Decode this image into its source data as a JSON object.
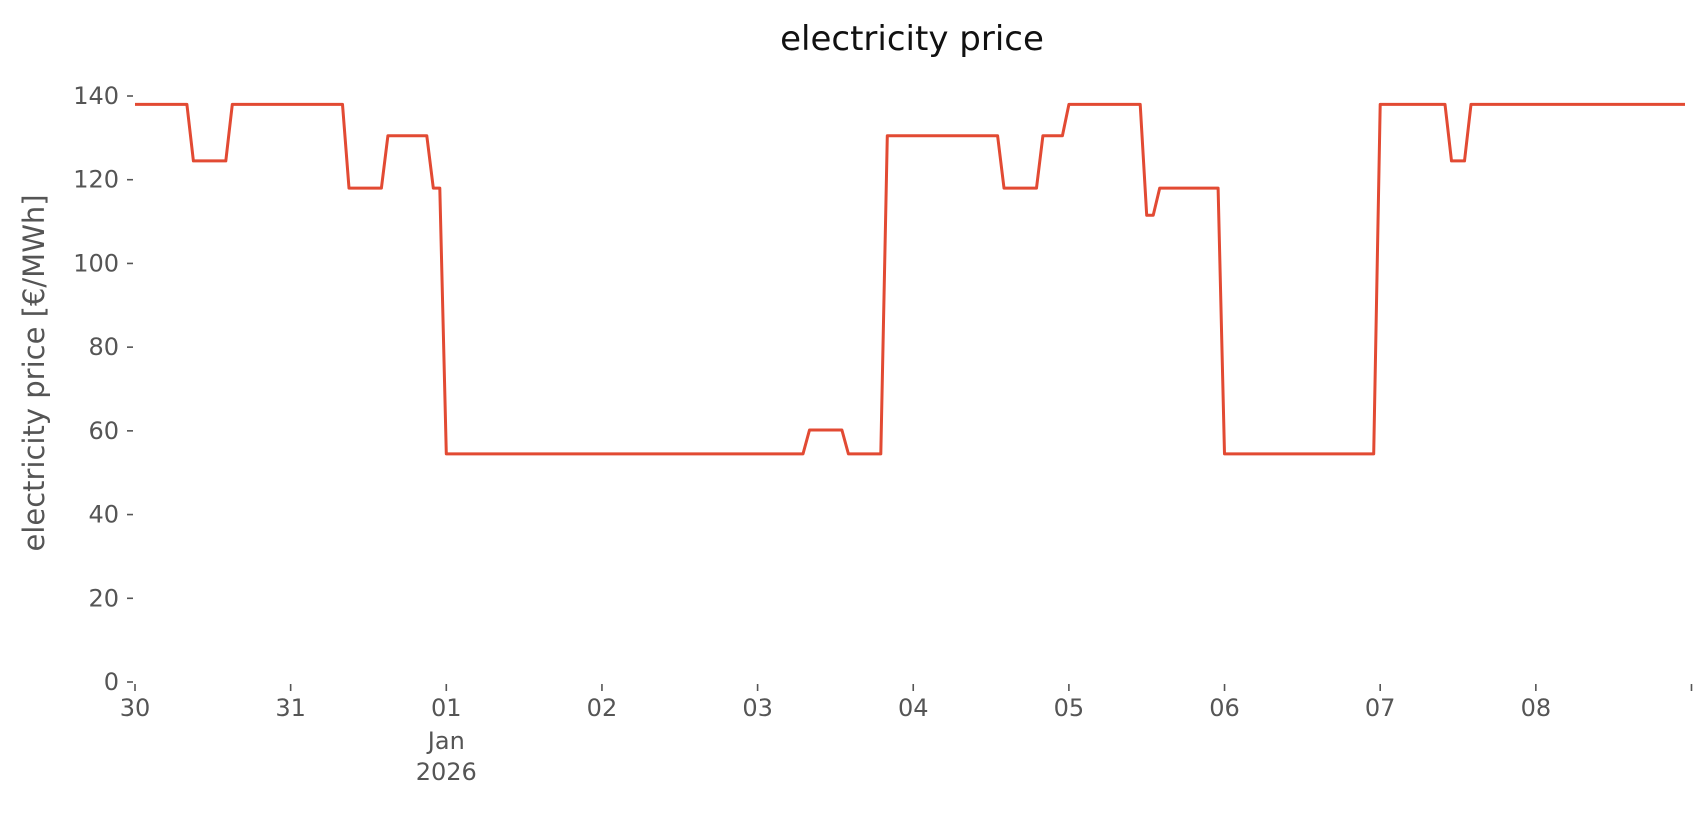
{
  "chart_data": {
    "type": "line",
    "title": "electricity price",
    "xlabel": "",
    "ylabel": "electricity price [€/MWh]",
    "ylim": [
      0,
      140
    ],
    "xlim": [
      "2025-12-30T00:00",
      "2026-01-08T23:00"
    ],
    "grid": false,
    "y_ticks": [
      0,
      20,
      40,
      60,
      80,
      100,
      120,
      140
    ],
    "x_ticks": [
      {
        "date": "2025-12-30",
        "label": "30",
        "sub": ""
      },
      {
        "date": "2025-12-31",
        "label": "31",
        "sub": ""
      },
      {
        "date": "2026-01-01",
        "label": "01",
        "sub": "Jan\n2026"
      },
      {
        "date": "2026-01-02",
        "label": "02",
        "sub": ""
      },
      {
        "date": "2026-01-03",
        "label": "03",
        "sub": ""
      },
      {
        "date": "2026-01-04",
        "label": "04",
        "sub": ""
      },
      {
        "date": "2026-01-05",
        "label": "05",
        "sub": ""
      },
      {
        "date": "2026-01-06",
        "label": "06",
        "sub": ""
      },
      {
        "date": "2026-01-07",
        "label": "07",
        "sub": ""
      },
      {
        "date": "2026-01-08",
        "label": "08",
        "sub": ""
      },
      {
        "date": "2026-01-09",
        "label": "",
        "sub": ""
      }
    ],
    "series": [
      {
        "color": "#E24A33",
        "x": [
          "2025-12-30T00:00",
          "2025-12-30T08:00",
          "2025-12-30T09:00",
          "2025-12-30T14:00",
          "2025-12-30T15:00",
          "2025-12-31T08:00",
          "2025-12-31T09:00",
          "2025-12-31T14:00",
          "2025-12-31T15:00",
          "2025-12-31T21:00",
          "2025-12-31T22:00",
          "2025-12-31T23:00",
          "2026-01-01T00:00",
          "2026-01-03T07:00",
          "2026-01-03T08:00",
          "2026-01-03T13:00",
          "2026-01-03T14:00",
          "2026-01-03T19:00",
          "2026-01-03T20:00",
          "2026-01-04T13:00",
          "2026-01-04T14:00",
          "2026-01-04T19:00",
          "2026-01-04T20:00",
          "2026-01-04T23:00",
          "2026-01-05T00:00",
          "2026-01-05T11:00",
          "2026-01-05T12:00",
          "2026-01-05T13:00",
          "2026-01-05T14:00",
          "2026-01-05T23:00",
          "2026-01-06T00:00",
          "2026-01-06T23:00",
          "2026-01-07T00:00",
          "2026-01-07T10:00",
          "2026-01-07T11:00",
          "2026-01-07T13:00",
          "2026-01-07T14:00",
          "2026-01-08T23:00"
        ],
        "y": [
          138,
          138,
          124.5,
          124.5,
          138,
          138,
          118,
          118,
          130.5,
          130.5,
          118,
          118,
          54.5,
          54.5,
          60.2,
          60.2,
          54.5,
          54.5,
          130.5,
          130.5,
          118,
          118,
          130.5,
          130.5,
          138,
          138,
          111.5,
          111.5,
          118,
          118,
          54.5,
          54.5,
          138,
          138,
          124.5,
          124.5,
          138,
          138
        ]
      }
    ]
  }
}
